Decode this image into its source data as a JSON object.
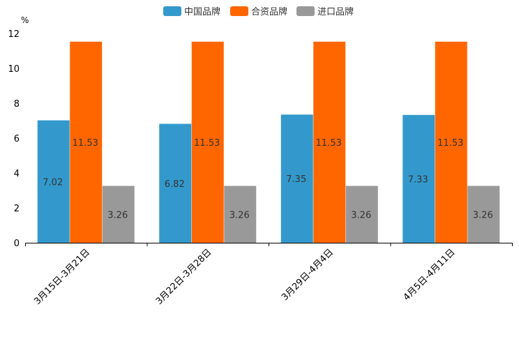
{
  "chart_data": {
    "type": "bar",
    "title": "",
    "ylabel": "%",
    "xlabel": "",
    "categories": [
      "3月15日-3月21日",
      "3月22日-3月28日",
      "3月29日-4月4日",
      "4月5日-4月11日"
    ],
    "series": [
      {
        "name": "中国品牌",
        "color": "#3399CC",
        "values": [
          7.02,
          6.82,
          7.35,
          7.33
        ]
      },
      {
        "name": "合资品牌",
        "color": "#FF6600",
        "values": [
          11.53,
          11.53,
          11.53,
          11.53
        ]
      },
      {
        "name": "进口品牌",
        "color": "#999999",
        "values": [
          3.26,
          3.26,
          3.26,
          3.26
        ]
      }
    ],
    "ylim": [
      0,
      12
    ],
    "yticks": [
      0,
      2,
      4,
      6,
      8,
      10,
      12
    ],
    "grid": false,
    "legend": "top-center"
  }
}
